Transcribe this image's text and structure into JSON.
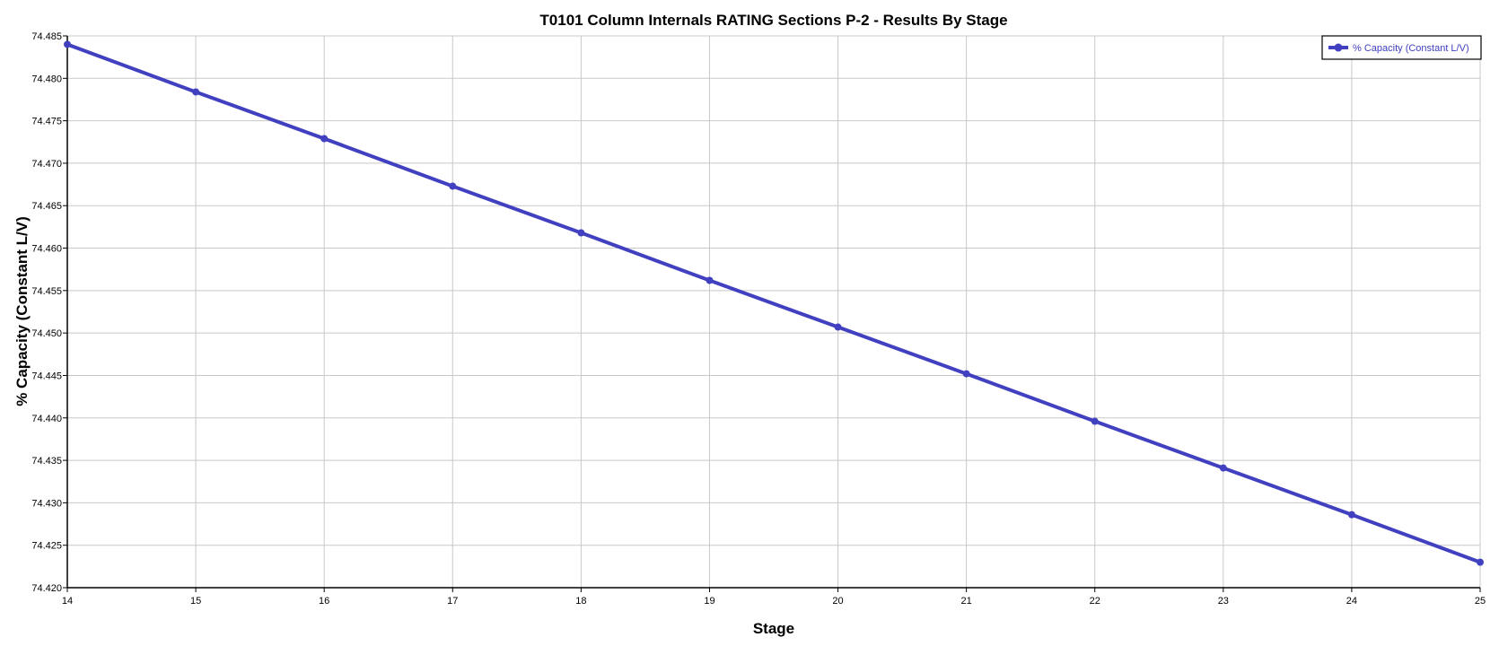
{
  "chart_data": {
    "type": "line",
    "title": "T0101 Column Internals RATING Sections P-2 - Results By Stage",
    "xlabel": "Stage",
    "ylabel": "% Capacity (Constant L/V)",
    "xlim": [
      14,
      25
    ],
    "ylim": [
      74.42,
      74.485
    ],
    "x_ticks": [
      "14",
      "15",
      "16",
      "17",
      "18",
      "19",
      "20",
      "21",
      "22",
      "23",
      "24",
      "25"
    ],
    "y_ticks": [
      "74.420",
      "74.425",
      "74.430",
      "74.435",
      "74.440",
      "74.445",
      "74.450",
      "74.455",
      "74.460",
      "74.465",
      "74.470",
      "74.475",
      "74.480",
      "74.485"
    ],
    "grid": true,
    "legend_position": "top-right",
    "series": [
      {
        "name": "% Capacity (Constant L/V)",
        "color": "#4040c0",
        "x": [
          14,
          15,
          16,
          17,
          18,
          19,
          20,
          21,
          22,
          23,
          24,
          25
        ],
        "y": [
          74.484,
          74.4784,
          74.4729,
          74.4673,
          74.4618,
          74.4562,
          74.4507,
          74.4452,
          74.4396,
          74.4341,
          74.4286,
          74.423
        ]
      }
    ]
  }
}
